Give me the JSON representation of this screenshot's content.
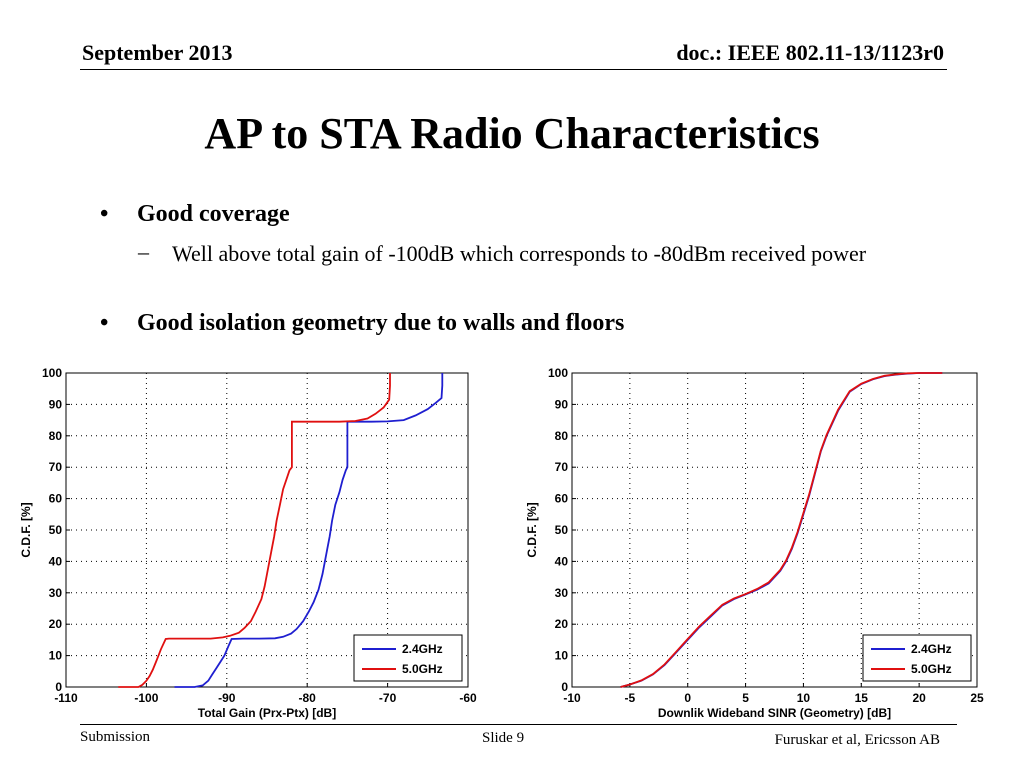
{
  "header": {
    "date": "September 2013",
    "doc_id": "doc.: IEEE 802.11-13/1123r0"
  },
  "title": "AP to STA Radio Characteristics",
  "bullets": [
    {
      "marker": "•",
      "text": "Good coverage",
      "sub": [
        {
          "marker": "–",
          "text": "Well above total gain of -100dB which corresponds to -80dBm received power"
        }
      ]
    },
    {
      "marker": "•",
      "text": "Good isolation geometry due to walls and floors",
      "sub": []
    }
  ],
  "chart_data": [
    {
      "type": "line",
      "title": "",
      "xlabel": "Total Gain (Prx-Ptx) [dB]",
      "ylabel": "C.D.F.  [%]",
      "xlim": [
        -110,
        -60
      ],
      "ylim": [
        0,
        100
      ],
      "xticks": [
        -110,
        -100,
        -90,
        -80,
        -70,
        -60
      ],
      "yticks": [
        0,
        10,
        20,
        30,
        40,
        50,
        60,
        70,
        80,
        90,
        100
      ],
      "legend_position": "bottom-right",
      "series": [
        {
          "name": "2.4GHz",
          "color": "#1f1fd0",
          "x": [
            -96.5,
            -94,
            -93,
            -92.3,
            -91.8,
            -91.3,
            -90.8,
            -90.3,
            -89.8,
            -89.4,
            -88,
            -86,
            -84,
            -83,
            -82,
            -81.3,
            -80.5,
            -79.8,
            -79.2,
            -78.6,
            -78.1,
            -77.8,
            -77.5,
            -77.2,
            -76.9,
            -76.5,
            -76,
            -75.6,
            -75.2,
            -75,
            -75,
            -72,
            -70,
            -68,
            -66.5,
            -65,
            -64,
            -63.3,
            -63.2,
            -63.2
          ],
          "y": [
            0,
            0,
            0.5,
            2,
            4,
            6,
            8,
            10,
            13,
            15.3,
            15.4,
            15.4,
            15.5,
            16,
            17,
            18.5,
            21,
            24,
            27,
            31,
            36,
            40,
            44,
            48,
            53,
            58,
            62,
            66,
            69,
            70,
            84.5,
            84.5,
            84.6,
            85,
            86.5,
            88.5,
            90.5,
            92,
            96,
            100
          ]
        },
        {
          "name": "5.0GHz",
          "color": "#e01010",
          "x": [
            -103.5,
            -101,
            -100.5,
            -100,
            -99.6,
            -99.2,
            -98.8,
            -98.5,
            -98.2,
            -97.6,
            -97.2,
            -96,
            -94,
            -92,
            -90.5,
            -89.6,
            -88.5,
            -87.8,
            -87,
            -86.4,
            -85.7,
            -85.3,
            -85,
            -84.7,
            -84.4,
            -84.1,
            -83.8,
            -83.4,
            -83,
            -82.6,
            -82.2,
            -81.9,
            -81.9,
            -79,
            -76,
            -74,
            -72.5,
            -71.5,
            -70.5,
            -69.8,
            -69.7,
            -69.7
          ],
          "y": [
            0,
            0,
            0.7,
            2,
            3.5,
            5.5,
            8,
            10,
            12,
            15.3,
            15.4,
            15.4,
            15.4,
            15.4,
            15.8,
            16.3,
            17.3,
            18.8,
            21,
            24,
            28,
            32,
            36,
            40,
            44,
            48,
            53,
            58,
            63,
            66,
            69,
            70,
            84.5,
            84.5,
            84.5,
            84.7,
            85.5,
            87,
            89,
            91.5,
            96,
            100
          ]
        }
      ]
    },
    {
      "type": "line",
      "title": "",
      "xlabel": "Downlik Wideband SINR (Geometry) [dB]",
      "ylabel": "C.D.F.  [%]",
      "xlim": [
        -10,
        25
      ],
      "ylim": [
        0,
        100
      ],
      "xticks": [
        -10,
        -5,
        0,
        5,
        10,
        15,
        20,
        25
      ],
      "yticks": [
        0,
        10,
        20,
        30,
        40,
        50,
        60,
        70,
        80,
        90,
        100
      ],
      "legend_position": "bottom-right",
      "series": [
        {
          "name": "2.4GHz",
          "color": "#1f1fd0",
          "x": [
            -5.8,
            -5,
            -4,
            -3,
            -2,
            -1,
            0,
            1,
            2,
            3,
            4,
            5,
            6,
            7,
            8,
            8.5,
            9,
            9.5,
            10,
            10.5,
            11,
            11.5,
            12,
            13,
            14,
            15,
            16,
            17,
            18,
            19,
            20,
            21,
            22
          ],
          "y": [
            0,
            0.8,
            2,
            4,
            7,
            11,
            15,
            19,
            22.5,
            26,
            28,
            29.5,
            31,
            33,
            37,
            40,
            44,
            49,
            55,
            61,
            68,
            75,
            80,
            88,
            94,
            96.5,
            98,
            99,
            99.5,
            99.8,
            100,
            100,
            100
          ]
        },
        {
          "name": "5.0GHz",
          "color": "#e01010",
          "x": [
            -5.8,
            -5,
            -4,
            -3,
            -2,
            -1,
            0,
            1,
            2,
            3,
            4,
            5,
            6,
            7,
            8,
            8.5,
            9,
            9.5,
            10,
            10.5,
            11,
            11.5,
            12,
            13,
            14,
            15,
            16,
            17,
            18,
            19,
            20,
            21,
            22
          ],
          "y": [
            0,
            0.8,
            2.1,
            4.1,
            7.2,
            11.2,
            15.3,
            19.3,
            22.8,
            26.2,
            28.2,
            29.6,
            31.2,
            33.3,
            37.3,
            40.3,
            44.4,
            49.4,
            55.4,
            61.4,
            68.3,
            75.3,
            80.3,
            88.3,
            94.2,
            96.6,
            98.1,
            99.1,
            99.6,
            99.9,
            100,
            100,
            100
          ]
        }
      ]
    }
  ],
  "footer": {
    "left": "Submission",
    "center": "Slide 9",
    "right": "Furuskar et al, Ericsson AB"
  }
}
